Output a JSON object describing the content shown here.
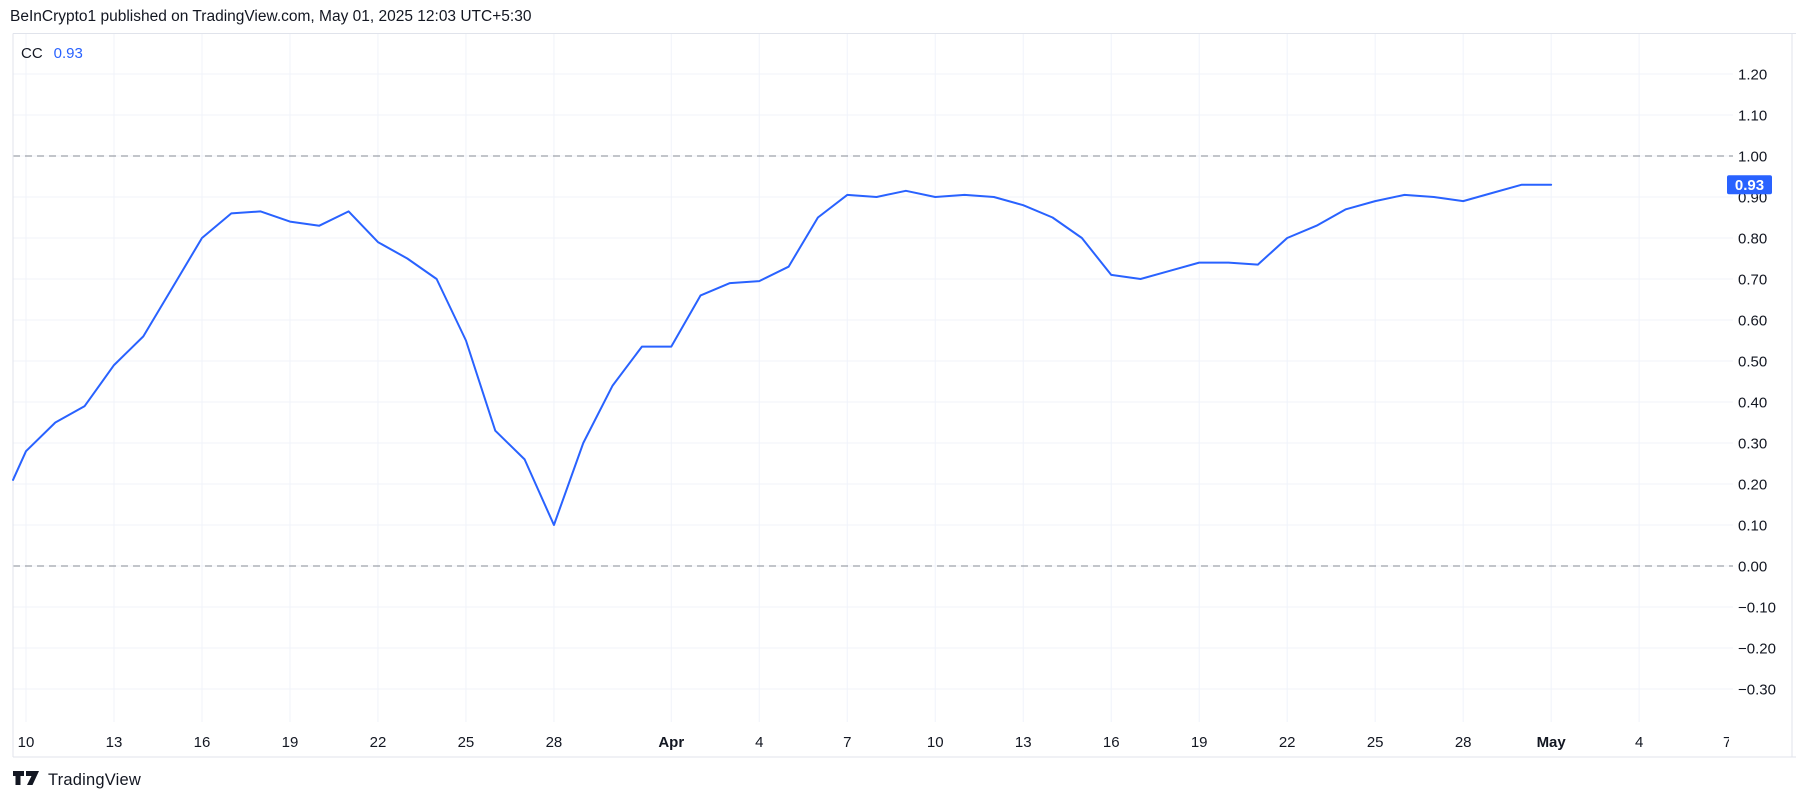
{
  "header": {
    "attribution": "BeInCrypto1 published on TradingView.com, May 01, 2025 12:03 UTC+5:30"
  },
  "legend": {
    "indicator": "CC",
    "value": "0.93"
  },
  "footer": {
    "brand": "TradingView"
  },
  "colors": {
    "line": "#2962FF",
    "badge_bg": "#2962FF",
    "badge_text": "#ffffff",
    "text": "#131722",
    "grid": "#f0f3fa",
    "border": "#e0e3eb",
    "dashed": "#868b94"
  },
  "price_scale": {
    "labels": [
      "1.20",
      "1.10",
      "1.00",
      "0.90",
      "0.80",
      "0.70",
      "0.60",
      "0.50",
      "0.40",
      "0.30",
      "0.20",
      "0.10",
      "0.00",
      "−0.10",
      "−0.20",
      "−0.30"
    ],
    "badge_value": "0.93"
  },
  "chart_data": {
    "type": "line",
    "series_name": "CC",
    "current_value": 0.93,
    "ylim": [
      -0.345,
      1.3
    ],
    "grid": true,
    "dashed_levels": [
      1.0,
      0.0
    ],
    "y_ticks": [
      1.2,
      1.1,
      1.0,
      0.9,
      0.8,
      0.7,
      0.6,
      0.5,
      0.4,
      0.3,
      0.2,
      0.1,
      0.0,
      -0.1,
      -0.2,
      -0.3
    ],
    "x": [
      "Mar 9",
      "Mar 10",
      "Mar 11",
      "Mar 12",
      "Mar 13",
      "Mar 14",
      "Mar 15",
      "Mar 16",
      "Mar 17",
      "Mar 18",
      "Mar 19",
      "Mar 20",
      "Mar 21",
      "Mar 22",
      "Mar 23",
      "Mar 24",
      "Mar 25",
      "Mar 26",
      "Mar 27",
      "Mar 28",
      "Mar 29",
      "Mar 30",
      "Mar 31",
      "Apr 1",
      "Apr 2",
      "Apr 3",
      "Apr 4",
      "Apr 5",
      "Apr 6",
      "Apr 7",
      "Apr 8",
      "Apr 9",
      "Apr 10",
      "Apr 11",
      "Apr 12",
      "Apr 13",
      "Apr 14",
      "Apr 15",
      "Apr 16",
      "Apr 17",
      "Apr 18",
      "Apr 19",
      "Apr 20",
      "Apr 21",
      "Apr 22",
      "Apr 23",
      "Apr 24",
      "Apr 25",
      "Apr 26",
      "Apr 27",
      "Apr 28",
      "Apr 29",
      "Apr 30",
      "May 1"
    ],
    "values": [
      0.21,
      0.28,
      0.35,
      0.39,
      0.49,
      0.56,
      0.68,
      0.8,
      0.86,
      0.865,
      0.84,
      0.83,
      0.865,
      0.79,
      0.75,
      0.7,
      0.55,
      0.33,
      0.26,
      0.1,
      0.3,
      0.44,
      0.535,
      0.535,
      0.66,
      0.69,
      0.695,
      0.73,
      0.85,
      0.905,
      0.9,
      0.915,
      0.9,
      0.905,
      0.9,
      0.88,
      0.85,
      0.8,
      0.71,
      0.7,
      0.72,
      0.74,
      0.74,
      0.735,
      0.8,
      0.83,
      0.87,
      0.89,
      0.905,
      0.9,
      0.89,
      0.91,
      0.93,
      0.93
    ],
    "x_ticks": [
      {
        "label": "10",
        "index": 1,
        "bold": false,
        "gridline": true
      },
      {
        "label": "13",
        "index": 4,
        "bold": false,
        "gridline": true
      },
      {
        "label": "16",
        "index": 7,
        "bold": false,
        "gridline": true
      },
      {
        "label": "19",
        "index": 10,
        "bold": false,
        "gridline": true
      },
      {
        "label": "22",
        "index": 13,
        "bold": false,
        "gridline": true
      },
      {
        "label": "25",
        "index": 16,
        "bold": false,
        "gridline": true
      },
      {
        "label": "28",
        "index": 19,
        "bold": false,
        "gridline": true
      },
      {
        "label": "Apr",
        "index": 23,
        "bold": true,
        "gridline": true
      },
      {
        "label": "4",
        "index": 26,
        "bold": false,
        "gridline": true
      },
      {
        "label": "7",
        "index": 29,
        "bold": false,
        "gridline": true
      },
      {
        "label": "10",
        "index": 32,
        "bold": false,
        "gridline": true
      },
      {
        "label": "13",
        "index": 35,
        "bold": false,
        "gridline": true
      },
      {
        "label": "16",
        "index": 38,
        "bold": false,
        "gridline": true
      },
      {
        "label": "19",
        "index": 41,
        "bold": false,
        "gridline": true
      },
      {
        "label": "22",
        "index": 44,
        "bold": false,
        "gridline": true
      },
      {
        "label": "25",
        "index": 47,
        "bold": false,
        "gridline": true
      },
      {
        "label": "28",
        "index": 50,
        "bold": false,
        "gridline": true
      },
      {
        "label": "May",
        "index": 53,
        "bold": true,
        "gridline": true
      },
      {
        "label": "4",
        "index": 56,
        "bold": false,
        "gridline": true
      },
      {
        "label": "7",
        "index": 59,
        "bold": false,
        "gridline": false
      }
    ]
  }
}
